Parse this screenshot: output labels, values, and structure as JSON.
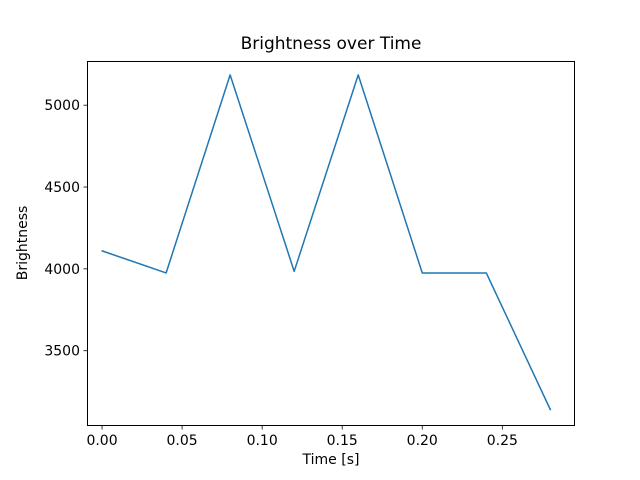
{
  "window": {
    "background": "#ffffff"
  },
  "chart_data": {
    "type": "line",
    "title": "Brightness over Time",
    "xlabel": "Time [s]",
    "ylabel": "Brightness",
    "x": [
      0.0,
      0.04,
      0.08,
      0.12,
      0.16,
      0.2,
      0.24,
      0.28
    ],
    "y": [
      4110,
      3975,
      5185,
      3985,
      5185,
      3975,
      3975,
      3140
    ],
    "xticks": {
      "values": [
        0.0,
        0.05,
        0.1,
        0.15,
        0.2,
        0.25
      ],
      "labels": [
        "0.00",
        "0.05",
        "0.10",
        "0.15",
        "0.20",
        "0.25"
      ]
    },
    "yticks": {
      "values": [
        3500,
        4000,
        4500,
        5000
      ],
      "labels": [
        "3500",
        "4000",
        "4500",
        "5000"
      ]
    },
    "xlim": [
      -0.0094,
      0.2954
    ],
    "ylim": [
      3040,
      5270
    ],
    "grid": false,
    "legend": "none",
    "line_color": "#1f77b4",
    "line_width": 1.5,
    "axes_color": "#000000",
    "text_color": "#000000",
    "background": "#ffffff"
  }
}
